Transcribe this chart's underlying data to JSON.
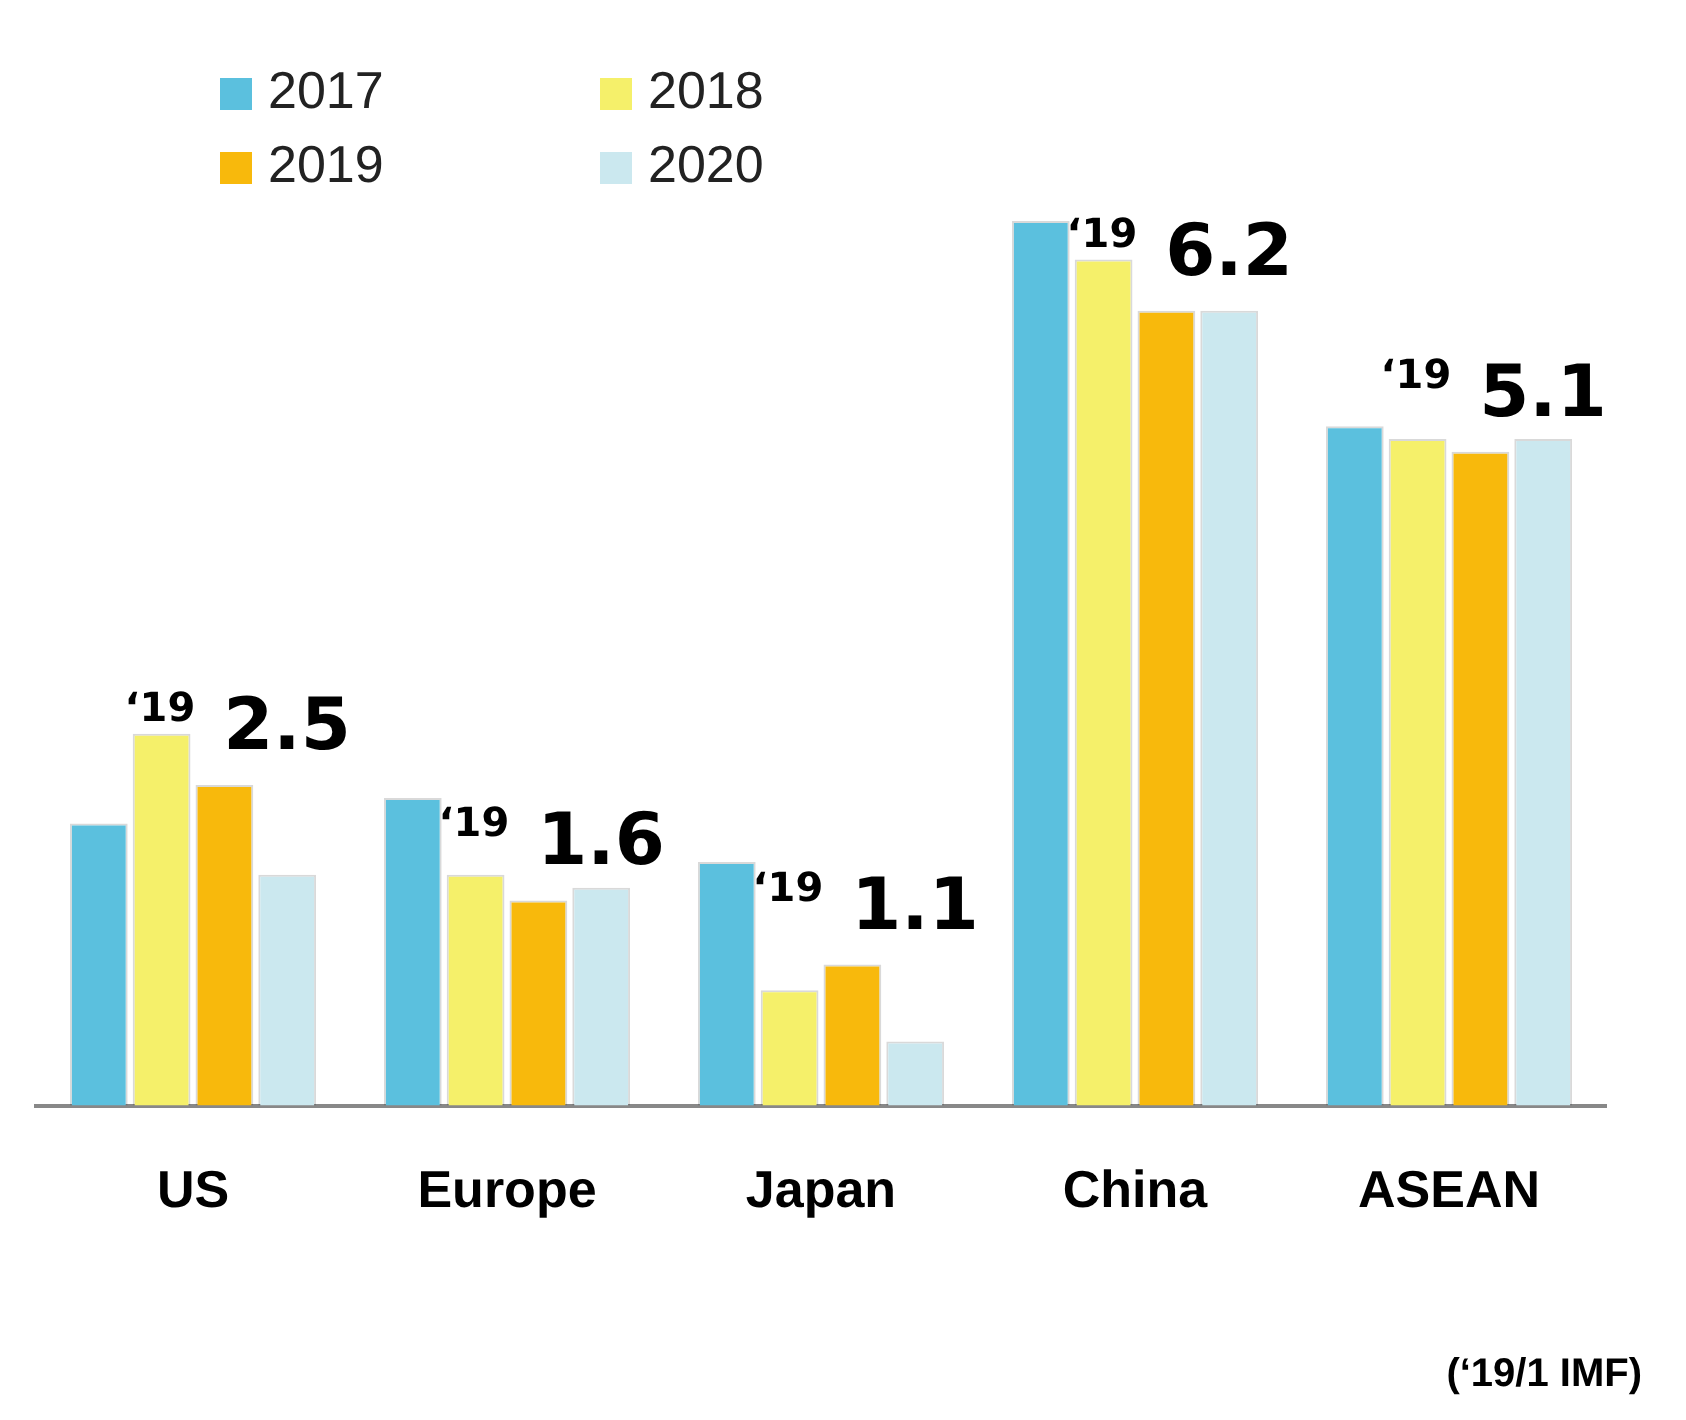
{
  "chart_data": {
    "type": "bar",
    "categories": [
      "US",
      "Europe",
      "Japan",
      "China",
      "ASEAN"
    ],
    "series": [
      {
        "name": "2017",
        "color": "#5bc0de",
        "values": [
          2.2,
          2.4,
          1.9,
          6.9,
          5.3
        ]
      },
      {
        "name": "2018",
        "color": "#f5f06a",
        "values": [
          2.9,
          1.8,
          0.9,
          6.6,
          5.2
        ]
      },
      {
        "name": "2019",
        "color": "#f8b90c",
        "values": [
          2.5,
          1.6,
          1.1,
          6.2,
          5.1
        ],
        "value_labels": [
          "‘19 2.5",
          "‘19 1.6",
          "‘19 1.1",
          "‘19 6.2",
          "‘19 5.1"
        ]
      },
      {
        "name": "2020",
        "color": "#cbe8ef",
        "values": [
          1.8,
          1.7,
          0.5,
          6.2,
          5.2
        ]
      }
    ],
    "legend": "top left",
    "grid": false,
    "tick_labels": "x",
    "annotations": [
      "(‘19/1 IMF)"
    ]
  }
}
